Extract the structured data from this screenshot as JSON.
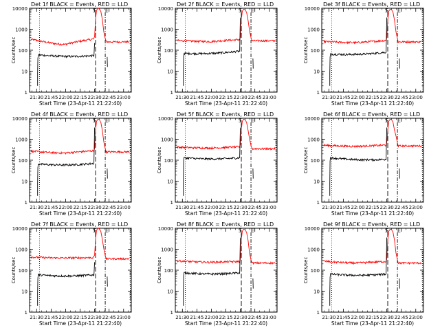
{
  "figure": {
    "background": "#ffffff",
    "event_color": "#000000",
    "lld_color": "#ff0000",
    "axis_color": "#000000"
  },
  "chart_data": [
    {
      "type": "line",
      "title": "Det 1f BLACK = Events, RED = LLD",
      "xlabel": "Start Time (23-Apr-11 21:22:40)",
      "ylabel": "Counts/sec",
      "x_ticks": [
        "21:30",
        "21:45",
        "22:00",
        "22:15",
        "22:30",
        "22:45",
        "23:00"
      ],
      "y_ticks": [
        "1",
        "10",
        "100",
        "1000",
        "10000"
      ],
      "y_scale": "log",
      "ylim": [
        1,
        10000
      ],
      "markers": [
        "S",
        "E"
      ],
      "series": [
        {
          "name": "Events",
          "start": 60,
          "end": 55,
          "gap_end": 48,
          "after": null
        },
        {
          "name": "LLD",
          "start": 330,
          "dip": 190,
          "end": 340,
          "peak": 10000,
          "after": 250
        }
      ]
    },
    {
      "type": "line",
      "title": "Det 2f BLACK = Events, RED = LLD",
      "xlabel": "Start Time (23-Apr-11 21:22:40)",
      "ylabel": "Counts/sec",
      "x_ticks": [
        "21:30",
        "21:45",
        "22:00",
        "22:15",
        "22:30",
        "22:45",
        "23:00"
      ],
      "y_ticks": [
        "1",
        "10",
        "100",
        "1000",
        "10000"
      ],
      "y_scale": "log",
      "ylim": [
        1,
        10000
      ],
      "markers": [
        "S",
        "E"
      ],
      "series": [
        {
          "name": "Events",
          "start": 70,
          "end": 90,
          "gap_end": null,
          "after": 20
        },
        {
          "name": "LLD",
          "start": 290,
          "dip": 260,
          "end": 320,
          "peak": 9000,
          "after": 280
        }
      ]
    },
    {
      "type": "line",
      "title": "Det 3f BLACK = Events, RED = LLD",
      "xlabel": "Start Time (23-Apr-11 21:22:40)",
      "ylabel": "Counts/sec",
      "x_ticks": [
        "21:30",
        "21:45",
        "22:00",
        "22:15",
        "22:30",
        "22:45",
        "23:00"
      ],
      "y_ticks": [
        "1",
        "10",
        "100",
        "1000",
        "10000"
      ],
      "y_scale": "log",
      "ylim": [
        1,
        10000
      ],
      "markers": [
        "S",
        "E"
      ],
      "series": [
        {
          "name": "Events",
          "start": 65,
          "end": 80,
          "gap_end": null,
          "after": 20
        },
        {
          "name": "LLD",
          "start": 260,
          "dip": 230,
          "end": 290,
          "peak": 9000,
          "after": 250
        }
      ]
    },
    {
      "type": "line",
      "title": "Det 4f BLACK = Events, RED = LLD",
      "xlabel": "Start Time (23-Apr-11 21:22:40)",
      "ylabel": "Counts/sec",
      "x_ticks": [
        "21:30",
        "21:45",
        "22:00",
        "22:15",
        "22:30",
        "22:45",
        "23:00"
      ],
      "y_ticks": [
        "1",
        "10",
        "100",
        "1000",
        "10000"
      ],
      "y_scale": "log",
      "ylim": [
        1,
        10000
      ],
      "markers": [
        "S",
        "E"
      ],
      "series": [
        {
          "name": "Events",
          "start": 65,
          "end": 70,
          "gap_end": null,
          "after": 20
        },
        {
          "name": "LLD",
          "start": 270,
          "dip": 220,
          "end": 280,
          "peak": 9000,
          "after": 250
        }
      ]
    },
    {
      "type": "line",
      "title": "Det 5f BLACK = Events, RED = LLD",
      "xlabel": "Start Time (23-Apr-11 21:22:40)",
      "ylabel": "Counts/sec",
      "x_ticks": [
        "21:30",
        "21:45",
        "22:00",
        "22:15",
        "22:30",
        "22:45",
        "23:00"
      ],
      "y_ticks": [
        "1",
        "10",
        "100",
        "1000",
        "10000"
      ],
      "y_scale": "log",
      "ylim": [
        1,
        10000
      ],
      "markers": [
        "S",
        "E"
      ],
      "series": [
        {
          "name": "Events",
          "start": 130,
          "end": 130,
          "gap_end": null,
          "after": 20
        },
        {
          "name": "LLD",
          "start": 420,
          "dip": 380,
          "end": 430,
          "peak": 9000,
          "after": 350
        }
      ]
    },
    {
      "type": "line",
      "title": "Det 6f BLACK = Events, RED = LLD",
      "xlabel": "Start Time (23-Apr-11 21:22:40)",
      "ylabel": "Counts/sec",
      "x_ticks": [
        "21:30",
        "21:45",
        "22:00",
        "22:15",
        "22:30",
        "22:45",
        "23:00"
      ],
      "y_ticks": [
        "1",
        "10",
        "100",
        "1000",
        "10000"
      ],
      "y_scale": "log",
      "ylim": [
        1,
        10000
      ],
      "markers": [
        "S",
        "E"
      ],
      "series": [
        {
          "name": "Events",
          "start": 130,
          "end": 110,
          "gap_end": null,
          "after": 20
        },
        {
          "name": "LLD",
          "start": 520,
          "dip": 460,
          "end": 520,
          "peak": 9000,
          "after": 480
        }
      ]
    },
    {
      "type": "line",
      "title": "Det 7f BLACK = Events, RED = LLD",
      "xlabel": "Start Time (23-Apr-11 21:22:40)",
      "ylabel": "Counts/sec",
      "x_ticks": [
        "21:30",
        "21:45",
        "22:00",
        "22:15",
        "22:30",
        "22:45",
        "23:00"
      ],
      "y_ticks": [
        "1",
        "10",
        "100",
        "1000",
        "10000"
      ],
      "y_scale": "log",
      "ylim": [
        1,
        10000
      ],
      "markers": [
        "S",
        "E"
      ],
      "series": [
        {
          "name": "Events",
          "start": 60,
          "end": 60,
          "gap_end": 50,
          "after": null
        },
        {
          "name": "LLD",
          "start": 420,
          "dip": 380,
          "end": 400,
          "peak": 10000,
          "after": 350
        }
      ]
    },
    {
      "type": "line",
      "title": "Det 8f BLACK = Events, RED = LLD",
      "xlabel": "Start Time (23-Apr-11 21:22:40)",
      "ylabel": "Counts/sec",
      "x_ticks": [
        "21:30",
        "21:45",
        "22:00",
        "22:15",
        "22:30",
        "22:45",
        "23:00"
      ],
      "y_ticks": [
        "1",
        "10",
        "100",
        "1000",
        "10000"
      ],
      "y_scale": "log",
      "ylim": [
        1,
        10000
      ],
      "markers": [
        "S",
        "E"
      ],
      "series": [
        {
          "name": "Events",
          "start": 75,
          "end": 75,
          "gap_end": null,
          "after": 20
        },
        {
          "name": "LLD",
          "start": 280,
          "dip": 240,
          "end": 260,
          "peak": 9000,
          "after": 220
        }
      ]
    },
    {
      "type": "line",
      "title": "Det 9f BLACK = Events, RED = LLD",
      "xlabel": "Start Time (23-Apr-11 21:22:40)",
      "ylabel": "Counts/sec",
      "x_ticks": [
        "21:30",
        "21:45",
        "22:00",
        "22:15",
        "22:30",
        "22:45",
        "23:00"
      ],
      "y_ticks": [
        "1",
        "10",
        "100",
        "1000",
        "10000"
      ],
      "y_scale": "log",
      "ylim": [
        1,
        10000
      ],
      "markers": [
        "S",
        "E"
      ],
      "series": [
        {
          "name": "Events",
          "start": 65,
          "end": 65,
          "gap_end": null,
          "after": 20
        },
        {
          "name": "LLD",
          "start": 270,
          "dip": 220,
          "end": 260,
          "peak": 9000,
          "after": 220
        }
      ]
    }
  ]
}
